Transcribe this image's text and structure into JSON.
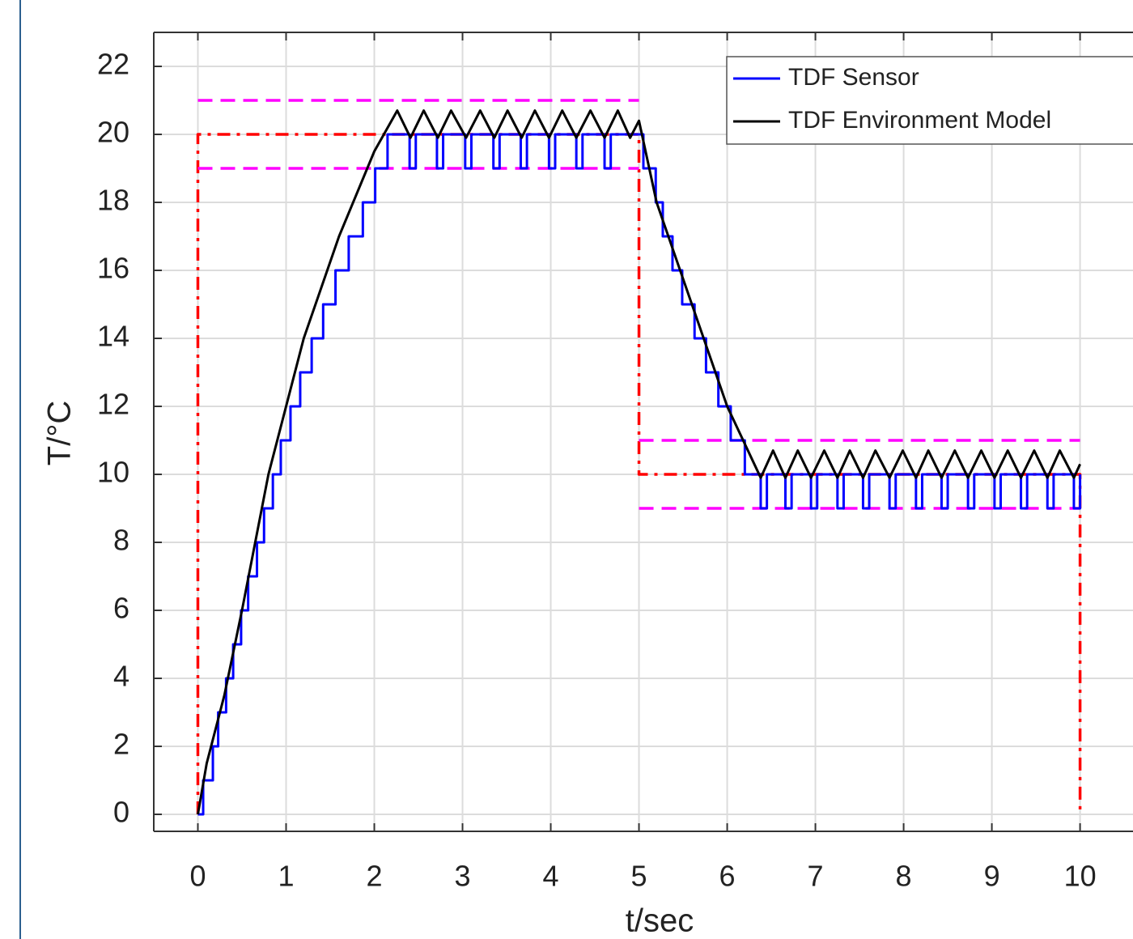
{
  "chart_data": {
    "type": "line",
    "xlabel": "t/sec",
    "ylabel": "T/°C",
    "xlim": [
      -0.5,
      10.6
    ],
    "ylim": [
      -0.5,
      23
    ],
    "xticks": [
      0,
      1,
      2,
      3,
      4,
      5,
      6,
      7,
      8,
      9,
      10
    ],
    "yticks": [
      0,
      2,
      4,
      6,
      8,
      10,
      12,
      14,
      16,
      18,
      20,
      22
    ],
    "grid": true,
    "legend": "upper right",
    "series": [
      {
        "name": "TDF Sensor",
        "color": "#0000ff",
        "style": "solid",
        "x": [
          0,
          0.06,
          0.06,
          0.17,
          0.17,
          0.23,
          0.23,
          0.32,
          0.32,
          0.4,
          0.4,
          0.49,
          0.49,
          0.57,
          0.57,
          0.67,
          0.67,
          0.75,
          0.75,
          0.85,
          0.85,
          0.94,
          0.94,
          1.05,
          1.05,
          1.16,
          1.16,
          1.29,
          1.29,
          1.42,
          1.42,
          1.56,
          1.56,
          1.71,
          1.71,
          1.87,
          1.87,
          2.01,
          2.01,
          2.15,
          2.15,
          2.4,
          2.4,
          2.47,
          2.47,
          2.71,
          2.71,
          2.78,
          2.78,
          3.03,
          3.03,
          3.1,
          3.1,
          3.35,
          3.35,
          3.42,
          3.42,
          3.66,
          3.66,
          3.73,
          3.73,
          3.98,
          3.98,
          4.05,
          4.05,
          4.29,
          4.29,
          4.36,
          4.36,
          4.61,
          4.61,
          4.68,
          4.68,
          5.05,
          5.05,
          5.19,
          5.19,
          5.27,
          5.27,
          5.38,
          5.38,
          5.49,
          5.49,
          5.63,
          5.63,
          5.76,
          5.76,
          5.9,
          5.9,
          6.04,
          6.04,
          6.2,
          6.2,
          6.38,
          6.38,
          6.45,
          6.45,
          6.66,
          6.66,
          6.73,
          6.73,
          6.95,
          6.95,
          7.02,
          7.02,
          7.25,
          7.25,
          7.32,
          7.32,
          7.54,
          7.54,
          7.61,
          7.61,
          7.84,
          7.84,
          7.91,
          7.91,
          8.14,
          8.14,
          8.21,
          8.21,
          8.43,
          8.43,
          8.5,
          8.5,
          8.73,
          8.73,
          8.8,
          8.8,
          9.03,
          9.03,
          9.1,
          9.1,
          9.33,
          9.33,
          9.4,
          9.4,
          9.63,
          9.63,
          9.7,
          9.7,
          9.93,
          9.93,
          10,
          10
        ],
        "values": [
          0,
          0,
          1,
          1,
          2,
          2,
          3,
          3,
          4,
          4,
          5,
          5,
          6,
          6,
          7,
          7,
          8,
          8,
          9,
          9,
          10,
          10,
          11,
          11,
          12,
          12,
          13,
          13,
          14,
          14,
          15,
          15,
          16,
          16,
          17,
          17,
          18,
          18,
          19,
          19,
          20,
          20,
          19,
          19,
          20,
          20,
          19,
          19,
          20,
          20,
          19,
          19,
          20,
          20,
          19,
          19,
          20,
          20,
          19,
          19,
          20,
          20,
          19,
          19,
          20,
          20,
          19,
          19,
          20,
          20,
          19,
          19,
          20,
          20,
          19,
          19,
          18,
          18,
          17,
          17,
          16,
          16,
          15,
          15,
          14,
          14,
          13,
          13,
          12,
          12,
          11,
          11,
          10,
          10,
          9,
          9,
          10,
          10,
          9,
          9,
          10,
          10,
          9,
          9,
          10,
          10,
          9,
          9,
          10,
          10,
          9,
          9,
          10,
          10,
          9,
          9,
          10,
          10,
          9,
          9,
          10,
          10,
          9,
          9,
          10,
          10,
          9,
          9,
          10,
          10,
          9,
          9,
          10,
          10,
          9,
          9,
          10,
          10,
          9,
          9,
          10,
          10,
          9,
          9,
          10
        ]
      },
      {
        "name": "TDF Environment Model",
        "color": "#000000",
        "style": "solid",
        "x": [
          0,
          0.1,
          0.3,
          0.5,
          0.8,
          1.2,
          1.6,
          2.0,
          2.26,
          2.41,
          2.56,
          2.72,
          2.87,
          3.04,
          3.2,
          3.36,
          3.51,
          3.67,
          3.82,
          3.98,
          4.13,
          4.29,
          4.45,
          4.61,
          4.76,
          4.9,
          5.0,
          5.2,
          5.6,
          6.0,
          6.38,
          6.52,
          6.66,
          6.8,
          6.95,
          7.1,
          7.25,
          7.39,
          7.54,
          7.68,
          7.84,
          7.99,
          8.14,
          8.28,
          8.43,
          8.58,
          8.73,
          8.88,
          9.03,
          9.18,
          9.33,
          9.48,
          9.63,
          9.77,
          9.93,
          10.0
        ],
        "values": [
          0,
          1.5,
          3.5,
          6,
          10,
          14,
          17,
          19.5,
          20.7,
          19.9,
          20.7,
          19.9,
          20.7,
          19.9,
          20.7,
          19.9,
          20.7,
          19.9,
          20.7,
          19.9,
          20.7,
          19.9,
          20.7,
          19.9,
          20.7,
          19.9,
          20.4,
          18,
          15,
          12,
          9.9,
          10.7,
          9.9,
          10.7,
          9.9,
          10.7,
          9.9,
          10.7,
          9.9,
          10.7,
          9.9,
          10.7,
          9.9,
          10.7,
          9.9,
          10.7,
          9.9,
          10.7,
          9.9,
          10.7,
          9.9,
          10.7,
          9.9,
          10.7,
          9.9,
          10.3
        ]
      },
      {
        "color": "#ff0000",
        "style": "dashdot",
        "x": [
          0,
          0,
          5,
          5,
          10,
          10
        ],
        "values": [
          0,
          20,
          20,
          10,
          10,
          0
        ]
      },
      {
        "color": "#ff00ff",
        "style": "dashed",
        "x": [
          0,
          5,
          null,
          0,
          5,
          null,
          5,
          10,
          null,
          5,
          10
        ],
        "values": [
          21,
          21,
          null,
          19,
          19,
          null,
          11,
          11,
          null,
          9,
          9
        ]
      }
    ]
  }
}
